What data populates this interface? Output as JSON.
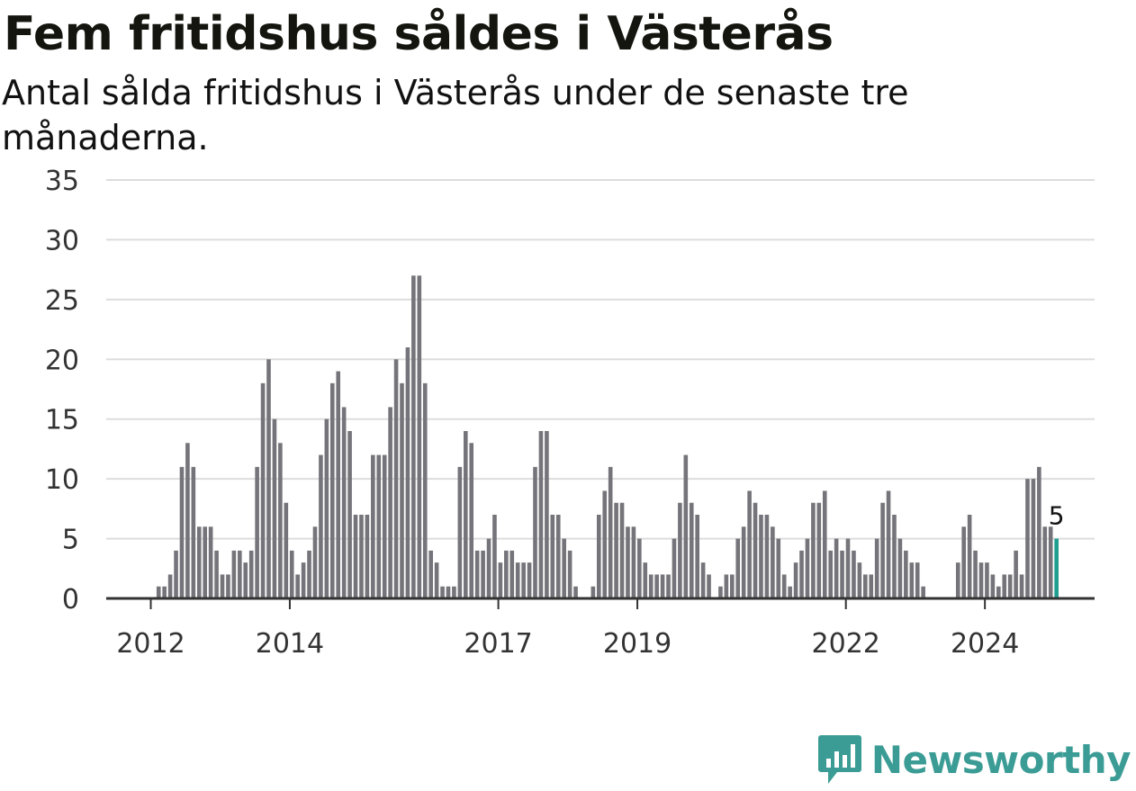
{
  "title": "Fem fritidshus såldes i Västerås",
  "subtitle": "Antal sålda fritidshus i Västerås under de senaste tre månaderna.",
  "brand": "Newsworthy",
  "colors": {
    "bar": "#75747a",
    "highlight": "#1f9e8f",
    "grid": "#dddddd",
    "axis": "#333333",
    "brand": "#3b9c95"
  },
  "chart_data": {
    "type": "bar",
    "title": "Fem fritidshus såldes i Västerås",
    "subtitle": "Antal sålda fritidshus i Västerås under de senaste tre månaderna.",
    "xlabel": "",
    "ylabel": "",
    "ylim": [
      0,
      35
    ],
    "yticks": [
      0,
      5,
      10,
      15,
      20,
      25,
      30,
      35
    ],
    "x_tick_labels": [
      "2012",
      "2014",
      "2017",
      "2019",
      "2022",
      "2024"
    ],
    "grid": true,
    "start": "2012-01",
    "end": "2024-09",
    "values": [
      0,
      1,
      1,
      2,
      4,
      11,
      13,
      11,
      6,
      6,
      6,
      4,
      2,
      2,
      4,
      4,
      3,
      4,
      11,
      18,
      20,
      15,
      13,
      8,
      4,
      2,
      3,
      4,
      6,
      12,
      15,
      18,
      19,
      16,
      14,
      7,
      7,
      7,
      12,
      12,
      12,
      16,
      20,
      18,
      21,
      27,
      27,
      18,
      4,
      3,
      1,
      1,
      1,
      11,
      14,
      13,
      4,
      4,
      5,
      7,
      3,
      4,
      4,
      3,
      3,
      3,
      11,
      14,
      14,
      7,
      7,
      5,
      4,
      1,
      0,
      0,
      1,
      7,
      9,
      11,
      8,
      8,
      6,
      6,
      5,
      3,
      2,
      2,
      2,
      2,
      5,
      8,
      12,
      8,
      7,
      3,
      2,
      0,
      1,
      2,
      2,
      5,
      6,
      9,
      8,
      7,
      7,
      6,
      5,
      2,
      1,
      3,
      4,
      5,
      8,
      8,
      9,
      4,
      5,
      4,
      5,
      4,
      3,
      2,
      2,
      5,
      8,
      9,
      7,
      5,
      4,
      3,
      3,
      1,
      0,
      0,
      0,
      0,
      0,
      3,
      6,
      7,
      4,
      3,
      3,
      2,
      1,
      2,
      2,
      4,
      2,
      10,
      10,
      11,
      6,
      6,
      5
    ],
    "highlight": {
      "value": 5,
      "label": "5"
    }
  }
}
